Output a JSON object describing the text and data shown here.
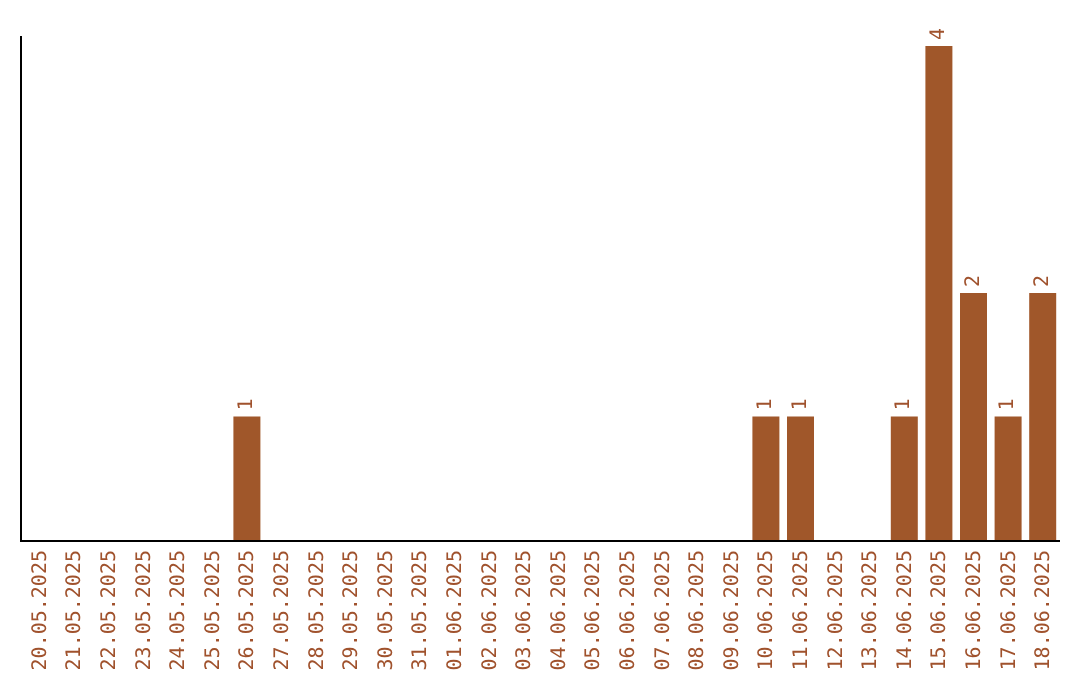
{
  "chart_data": {
    "type": "bar",
    "categories": [
      "20.05.2025",
      "21.05.2025",
      "22.05.2025",
      "23.05.2025",
      "24.05.2025",
      "25.05.2025",
      "26.05.2025",
      "27.05.2025",
      "28.05.2025",
      "29.05.2025",
      "30.05.2025",
      "31.05.2025",
      "01.06.2025",
      "02.06.2025",
      "03.06.2025",
      "04.06.2025",
      "05.06.2025",
      "06.06.2025",
      "07.06.2025",
      "08.06.2025",
      "09.06.2025",
      "10.06.2025",
      "11.06.2025",
      "12.06.2025",
      "13.06.2025",
      "14.06.2025",
      "15.06.2025",
      "16.06.2025",
      "17.06.2025",
      "18.06.2025"
    ],
    "values": [
      0,
      0,
      0,
      0,
      0,
      0,
      1,
      0,
      0,
      0,
      0,
      0,
      0,
      0,
      0,
      0,
      0,
      0,
      0,
      0,
      0,
      1,
      1,
      0,
      0,
      1,
      4,
      2,
      1,
      2
    ],
    "value_labels": [
      null,
      null,
      null,
      null,
      null,
      null,
      "1",
      null,
      null,
      null,
      null,
      null,
      null,
      null,
      null,
      null,
      null,
      null,
      null,
      null,
      null,
      "1",
      "1",
      null,
      null,
      "1",
      "4",
      "2",
      "1",
      "2"
    ],
    "color": "#a0572a",
    "tick_labels": "x",
    "grid": false,
    "legend": false
  }
}
